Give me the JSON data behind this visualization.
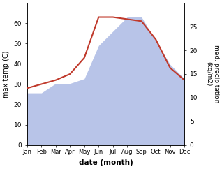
{
  "months": [
    "Jan",
    "Feb",
    "Mar",
    "Apr",
    "May",
    "Jun",
    "Jul",
    "Aug",
    "Sep",
    "Oct",
    "Nov",
    "Dec"
  ],
  "temp": [
    28,
    30,
    32,
    35,
    43,
    63,
    63,
    62,
    61,
    52,
    38,
    32
  ],
  "precip": [
    11,
    11,
    13,
    13,
    14,
    21,
    24,
    27,
    27,
    22,
    17,
    14
  ],
  "temp_color": "#c0392b",
  "precip_fill_color": "#b8c4e8",
  "ylim_temp": [
    0,
    70
  ],
  "ylim_precip": [
    0,
    30
  ],
  "yticks_temp": [
    0,
    10,
    20,
    30,
    40,
    50,
    60
  ],
  "yticks_precip": [
    0,
    5,
    10,
    15,
    20,
    25
  ],
  "xlabel": "date (month)",
  "ylabel_left": "max temp (C)",
  "ylabel_right": "med. precipitation\n(kg/m2)",
  "bg_color": "#ffffff",
  "temp_linewidth": 1.5
}
